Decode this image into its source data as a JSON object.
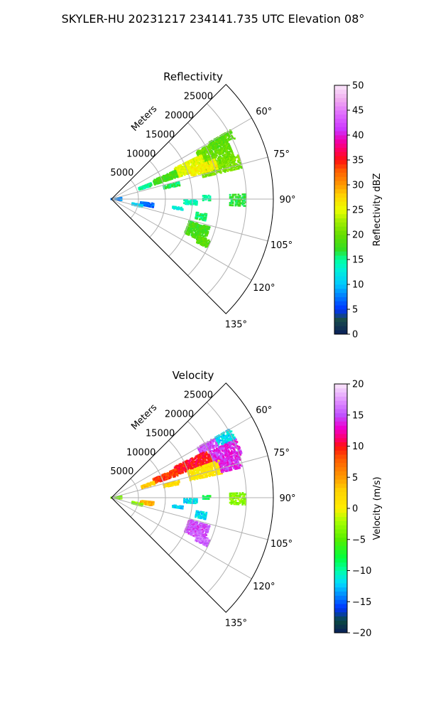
{
  "figure": {
    "title": "SKYLER-HU  20231217  234141.735 UTC Elevation 08°"
  },
  "chart_data": [
    {
      "type": "heatmap",
      "projection": "polar-sector",
      "title": "Reflectivity",
      "radial_label": "Meters",
      "radial_ticks": [
        5000,
        10000,
        15000,
        20000,
        25000
      ],
      "radial_tick_labels": [
        "5000",
        "10000",
        "15000",
        "20000",
        "25000"
      ],
      "rlim": [
        0,
        30000
      ],
      "theta_range_deg": [
        45,
        135
      ],
      "angle_ticks": [
        60,
        75,
        90,
        105,
        120,
        135
      ],
      "angle_tick_labels": [
        "60°",
        "75°",
        "90°",
        "105°",
        "120°",
        "135°"
      ],
      "colorbar": {
        "label": "Reflectivity dBZ",
        "range": [
          0,
          50
        ],
        "ticks": [
          0,
          5,
          10,
          15,
          20,
          25,
          30,
          35,
          40,
          45,
          50
        ],
        "tick_labels": [
          "0",
          "5",
          "10",
          "15",
          "20",
          "25",
          "30",
          "35",
          "40",
          "45",
          "50"
        ],
        "stops": [
          [
            0,
            "#0a1e5a"
          ],
          [
            3,
            "#1a4d4a"
          ],
          [
            5,
            "#0033ff"
          ],
          [
            8,
            "#0088ff"
          ],
          [
            10,
            "#00c8ff"
          ],
          [
            13,
            "#00f0d8"
          ],
          [
            15,
            "#00ffa0"
          ],
          [
            17,
            "#33dd22"
          ],
          [
            20,
            "#66dd00"
          ],
          [
            23,
            "#aaf000"
          ],
          [
            25,
            "#eeff00"
          ],
          [
            28,
            "#ffd000"
          ],
          [
            30,
            "#ff9a00"
          ],
          [
            33,
            "#ff5a00"
          ],
          [
            35,
            "#ff1010"
          ],
          [
            37,
            "#ff0060"
          ],
          [
            39,
            "#ee00b0"
          ],
          [
            41,
            "#cc33ff"
          ],
          [
            44,
            "#dd66ff"
          ],
          [
            47,
            "#f0a8f0"
          ],
          [
            50,
            "#fae6fa"
          ]
        ]
      },
      "gates": [
        {
          "az": [
            61,
            73
          ],
          "r": [
            18000,
            24000
          ],
          "value": 20
        },
        {
          "az": [
            60,
            64
          ],
          "r": [
            21000,
            25500
          ],
          "value": 19
        },
        {
          "az": [
            64,
            72
          ],
          "r": [
            13000,
            18500
          ],
          "value": 25
        },
        {
          "az": [
            71,
            77
          ],
          "r": [
            17500,
            25000
          ],
          "value": 21
        },
        {
          "az": [
            69,
            74
          ],
          "r": [
            15500,
            20500
          ],
          "value": 26
        },
        {
          "az": [
            66,
            72
          ],
          "r": [
            8500,
            13000
          ],
          "value": 18
        },
        {
          "az": [
            68,
            72
          ],
          "r": [
            5500,
            8000
          ],
          "value": 15
        },
        {
          "az": [
            76,
            79
          ],
          "r": [
            10000,
            13000
          ],
          "value": 16
        },
        {
          "az": [
            88,
            93
          ],
          "r": [
            22000,
            25000
          ],
          "value": 17
        },
        {
          "az": [
            88,
            91
          ],
          "r": [
            17000,
            18500
          ],
          "value": 15
        },
        {
          "az": [
            91,
            94
          ],
          "r": [
            13500,
            16000
          ],
          "value": 14
        },
        {
          "az": [
            99,
            103
          ],
          "r": [
            16000,
            18000
          ],
          "value": 16
        },
        {
          "az": [
            106,
            115
          ],
          "r": [
            15000,
            19000
          ],
          "value": 18
        },
        {
          "az": [
            113,
            117
          ],
          "r": [
            17500,
            20000
          ],
          "value": 19
        },
        {
          "az": [
            96,
            101
          ],
          "r": [
            5500,
            8000
          ],
          "value": 7
        },
        {
          "az": [
            101,
            105
          ],
          "r": [
            4000,
            6000
          ],
          "value": 11
        },
        {
          "az": [
            97,
            99
          ],
          "r": [
            11500,
            13500
          ],
          "value": 13
        },
        {
          "az": [
            82,
            96
          ],
          "r": [
            0,
            2000
          ],
          "value": 8
        }
      ]
    },
    {
      "type": "heatmap",
      "projection": "polar-sector",
      "title": "Velocity",
      "radial_label": "Meters",
      "radial_ticks": [
        5000,
        10000,
        15000,
        20000,
        25000
      ],
      "radial_tick_labels": [
        "5000",
        "10000",
        "15000",
        "20000",
        "25000"
      ],
      "rlim": [
        0,
        30000
      ],
      "theta_range_deg": [
        45,
        135
      ],
      "angle_ticks": [
        60,
        75,
        90,
        105,
        120,
        135
      ],
      "angle_tick_labels": [
        "60°",
        "75°",
        "90°",
        "105°",
        "120°",
        "135°"
      ],
      "colorbar": {
        "label": "Velocity (m/s)",
        "range": [
          -20,
          20
        ],
        "ticks": [
          -20,
          -15,
          -10,
          -5,
          0,
          5,
          10,
          15,
          20
        ],
        "tick_labels": [
          "−20",
          "−15",
          "−10",
          "−5",
          "0",
          "5",
          "10",
          "15",
          "20"
        ],
        "stops": [
          [
            -20,
            "#0a1e5a"
          ],
          [
            -18,
            "#0b4a40"
          ],
          [
            -16,
            "#0033ff"
          ],
          [
            -14,
            "#0088ff"
          ],
          [
            -12,
            "#00dcff"
          ],
          [
            -10,
            "#00ffa8"
          ],
          [
            -8,
            "#00ff40"
          ],
          [
            -5,
            "#55ee00"
          ],
          [
            -2,
            "#aaff00"
          ],
          [
            0,
            "#ffee00"
          ],
          [
            3,
            "#ffd000"
          ],
          [
            5,
            "#ff9a00"
          ],
          [
            8,
            "#ff5a00"
          ],
          [
            10,
            "#ff1010"
          ],
          [
            11,
            "#ff0060"
          ],
          [
            13,
            "#ee00d0"
          ],
          [
            15,
            "#c050ff"
          ],
          [
            17,
            "#dd88ff"
          ],
          [
            20,
            "#fae6fa"
          ]
        ]
      },
      "gates": [
        {
          "az": [
            60,
            66
          ],
          "r": [
            22000,
            25500
          ],
          "value": -12
        },
        {
          "az": [
            65,
            72
          ],
          "r": [
            20000,
            25500
          ],
          "value": 14
        },
        {
          "az": [
            60,
            64
          ],
          "r": [
            18500,
            22000
          ],
          "value": 15
        },
        {
          "az": [
            64,
            71
          ],
          "r": [
            13000,
            20000
          ],
          "value": 10
        },
        {
          "az": [
            71,
            78
          ],
          "r": [
            15000,
            21000
          ],
          "value": 1
        },
        {
          "az": [
            72,
            77
          ],
          "r": [
            21000,
            25000
          ],
          "value": 14
        },
        {
          "az": [
            66,
            72
          ],
          "r": [
            8500,
            13000
          ],
          "value": 9
        },
        {
          "az": [
            69,
            73
          ],
          "r": [
            6000,
            8500
          ],
          "value": 3
        },
        {
          "az": [
            76,
            79
          ],
          "r": [
            10000,
            13000
          ],
          "value": 2
        },
        {
          "az": [
            88,
            93
          ],
          "r": [
            22000,
            25000
          ],
          "value": -3
        },
        {
          "az": [
            89,
            91
          ],
          "r": [
            17000,
            18500
          ],
          "value": -8
        },
        {
          "az": [
            91,
            94
          ],
          "r": [
            13500,
            16000
          ],
          "value": -12
        },
        {
          "az": [
            99,
            103
          ],
          "r": [
            16000,
            18000
          ],
          "value": -12
        },
        {
          "az": [
            106,
            115
          ],
          "r": [
            15000,
            19000
          ],
          "value": 15
        },
        {
          "az": [
            113,
            117
          ],
          "r": [
            17500,
            20000
          ],
          "value": 16
        },
        {
          "az": [
            96,
            101
          ],
          "r": [
            5500,
            8000
          ],
          "value": 4
        },
        {
          "az": [
            101,
            105
          ],
          "r": [
            4000,
            6000
          ],
          "value": -3
        },
        {
          "az": [
            97,
            99
          ],
          "r": [
            11500,
            13500
          ],
          "value": -12
        },
        {
          "az": [
            82,
            96
          ],
          "r": [
            0,
            2000
          ],
          "value": -4
        }
      ]
    }
  ]
}
